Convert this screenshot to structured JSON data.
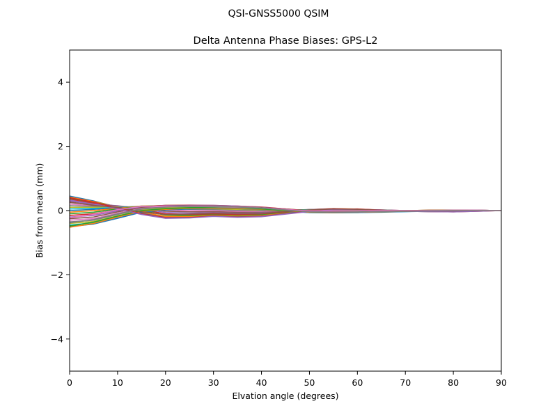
{
  "figure": {
    "suptitle": "QSI-GNSS5000    QSIM"
  },
  "chart_data": {
    "type": "line",
    "title": "Delta Antenna Phase Biases: GPS-L2",
    "xlabel": "Elvation angle (degrees)",
    "ylabel": "Bias from mean (mm)",
    "xlim": [
      0,
      90
    ],
    "ylim": [
      -5,
      5
    ],
    "xticks": [
      0,
      10,
      20,
      30,
      40,
      50,
      60,
      70,
      80,
      90
    ],
    "yticks": [
      -4,
      -2,
      0,
      2,
      4
    ],
    "ytick_labels": [
      "−4",
      "−2",
      "0",
      "2",
      "4"
    ],
    "grid": false,
    "legend": "none",
    "x": [
      0,
      5,
      10,
      15,
      20,
      25,
      30,
      35,
      40,
      45,
      50,
      55,
      60,
      65,
      70,
      75,
      80,
      85,
      90
    ],
    "palette": [
      "#1f77b4",
      "#ff7f0e",
      "#2ca02c",
      "#d62728",
      "#9467bd",
      "#8c564b",
      "#e377c2",
      "#7f7f7f",
      "#bcbd22",
      "#17becf"
    ],
    "series": [
      {
        "values": [
          0.45,
          0.3,
          0.1,
          -0.08,
          -0.2,
          -0.2,
          -0.15,
          -0.18,
          -0.15,
          -0.08,
          0.0,
          0.05,
          0.04,
          0.0,
          -0.02,
          -0.03,
          -0.03,
          -0.01,
          0.0
        ]
      },
      {
        "values": [
          0.42,
          0.28,
          0.12,
          -0.05,
          -0.18,
          -0.18,
          -0.14,
          -0.16,
          -0.14,
          -0.06,
          0.02,
          0.06,
          0.05,
          0.01,
          -0.01,
          -0.02,
          -0.02,
          0.0,
          0.0
        ]
      },
      {
        "values": [
          0.38,
          0.25,
          0.13,
          0.0,
          -0.14,
          -0.15,
          -0.12,
          -0.14,
          -0.12,
          -0.05,
          0.02,
          0.05,
          0.04,
          0.01,
          0.0,
          -0.02,
          -0.02,
          0.0,
          0.0
        ]
      },
      {
        "values": [
          0.35,
          0.22,
          0.14,
          0.03,
          -0.1,
          -0.12,
          -0.1,
          -0.12,
          -0.1,
          -0.04,
          0.03,
          0.06,
          0.04,
          0.02,
          0.0,
          -0.01,
          -0.01,
          0.0,
          0.0
        ]
      },
      {
        "values": [
          0.3,
          0.2,
          0.15,
          0.06,
          -0.06,
          -0.08,
          -0.06,
          -0.08,
          -0.07,
          -0.02,
          0.03,
          0.05,
          0.04,
          0.02,
          0.0,
          -0.01,
          0.0,
          0.0,
          0.0
        ]
      },
      {
        "values": [
          0.25,
          0.18,
          0.14,
          0.08,
          -0.02,
          -0.04,
          -0.03,
          -0.05,
          -0.04,
          -0.01,
          0.03,
          0.05,
          0.03,
          0.01,
          0.0,
          0.0,
          0.0,
          0.0,
          0.0
        ]
      },
      {
        "values": [
          0.2,
          0.15,
          0.13,
          0.1,
          0.02,
          0.0,
          0.0,
          -0.02,
          -0.02,
          0.0,
          0.03,
          0.04,
          0.03,
          0.01,
          0.0,
          0.0,
          0.0,
          0.0,
          0.0
        ]
      },
      {
        "values": [
          0.15,
          0.13,
          0.12,
          0.11,
          0.06,
          0.04,
          0.03,
          0.01,
          0.0,
          0.01,
          0.03,
          0.04,
          0.03,
          0.01,
          0.0,
          0.0,
          0.0,
          0.0,
          0.0
        ]
      },
      {
        "values": [
          0.1,
          0.1,
          0.11,
          0.12,
          0.09,
          0.07,
          0.06,
          0.04,
          0.02,
          0.01,
          0.02,
          0.03,
          0.02,
          0.01,
          0.0,
          0.0,
          0.0,
          0.0,
          0.0
        ]
      },
      {
        "values": [
          0.05,
          0.07,
          0.1,
          0.13,
          0.12,
          0.1,
          0.09,
          0.07,
          0.04,
          0.02,
          0.02,
          0.02,
          0.02,
          0.01,
          0.0,
          0.0,
          0.01,
          0.0,
          0.0
        ]
      },
      {
        "values": [
          0.0,
          0.04,
          0.09,
          0.14,
          0.14,
          0.13,
          0.12,
          0.1,
          0.07,
          0.03,
          0.01,
          0.01,
          0.01,
          0.0,
          0.0,
          0.0,
          0.01,
          0.0,
          0.0
        ]
      },
      {
        "values": [
          -0.05,
          0.0,
          0.07,
          0.14,
          0.15,
          0.15,
          0.14,
          0.12,
          0.09,
          0.04,
          0.0,
          0.0,
          0.0,
          0.0,
          0.0,
          0.01,
          0.01,
          0.0,
          0.0
        ]
      },
      {
        "values": [
          -0.1,
          -0.05,
          0.05,
          0.13,
          0.16,
          0.16,
          0.15,
          0.13,
          0.1,
          0.05,
          0.0,
          -0.01,
          -0.01,
          0.0,
          0.0,
          0.01,
          0.01,
          0.01,
          0.0
        ]
      },
      {
        "values": [
          -0.15,
          -0.1,
          0.02,
          0.12,
          0.16,
          0.17,
          0.16,
          0.14,
          0.11,
          0.05,
          -0.01,
          -0.02,
          -0.02,
          -0.01,
          0.0,
          0.01,
          0.01,
          0.01,
          0.0
        ]
      },
      {
        "values": [
          -0.2,
          -0.15,
          -0.01,
          0.11,
          0.15,
          0.16,
          0.16,
          0.14,
          0.1,
          0.04,
          -0.02,
          -0.03,
          -0.03,
          -0.02,
          -0.01,
          0.0,
          0.01,
          0.01,
          0.0
        ]
      },
      {
        "values": [
          -0.25,
          -0.2,
          -0.04,
          0.09,
          0.14,
          0.15,
          0.15,
          0.13,
          0.09,
          0.03,
          -0.03,
          -0.04,
          -0.04,
          -0.03,
          -0.01,
          0.0,
          0.01,
          0.01,
          0.0
        ]
      },
      {
        "values": [
          -0.3,
          -0.25,
          -0.08,
          0.07,
          0.12,
          0.14,
          0.14,
          0.12,
          0.08,
          0.02,
          -0.04,
          -0.05,
          -0.05,
          -0.03,
          -0.02,
          0.0,
          0.0,
          0.01,
          0.0
        ]
      },
      {
        "values": [
          -0.35,
          -0.3,
          -0.12,
          0.04,
          0.1,
          0.12,
          0.13,
          0.11,
          0.07,
          0.01,
          -0.05,
          -0.06,
          -0.05,
          -0.04,
          -0.02,
          -0.01,
          0.0,
          0.01,
          0.0
        ]
      },
      {
        "values": [
          -0.4,
          -0.34,
          -0.16,
          0.01,
          0.08,
          0.1,
          0.11,
          0.1,
          0.06,
          0.0,
          -0.05,
          -0.06,
          -0.06,
          -0.04,
          -0.02,
          -0.01,
          0.0,
          0.0,
          0.0
        ]
      },
      {
        "values": [
          -0.45,
          -0.38,
          -0.2,
          -0.02,
          0.05,
          0.08,
          0.09,
          0.08,
          0.04,
          -0.01,
          -0.06,
          -0.07,
          -0.06,
          -0.04,
          -0.03,
          -0.01,
          0.0,
          0.0,
          0.0
        ]
      },
      {
        "values": [
          -0.5,
          -0.42,
          -0.24,
          -0.05,
          0.02,
          0.05,
          0.07,
          0.06,
          0.03,
          -0.02,
          -0.06,
          -0.07,
          -0.06,
          -0.05,
          -0.03,
          -0.02,
          -0.01,
          0.0,
          0.0
        ]
      },
      {
        "values": [
          -0.52,
          -0.4,
          -0.2,
          -0.02,
          0.04,
          0.07,
          0.08,
          0.07,
          0.04,
          -0.01,
          -0.05,
          -0.06,
          -0.05,
          -0.04,
          -0.02,
          -0.01,
          0.0,
          0.0,
          0.0
        ]
      },
      {
        "values": [
          -0.48,
          -0.36,
          -0.17,
          0.0,
          0.06,
          0.09,
          0.1,
          0.09,
          0.05,
          0.0,
          -0.04,
          -0.05,
          -0.04,
          -0.03,
          -0.02,
          -0.01,
          0.0,
          0.0,
          0.0
        ]
      },
      {
        "values": [
          0.4,
          0.26,
          0.08,
          -0.1,
          -0.22,
          -0.22,
          -0.17,
          -0.2,
          -0.18,
          -0.1,
          -0.02,
          0.04,
          0.05,
          0.01,
          -0.02,
          -0.03,
          -0.04,
          -0.02,
          0.0
        ]
      },
      {
        "values": [
          0.33,
          0.2,
          0.06,
          -0.12,
          -0.24,
          -0.23,
          -0.18,
          -0.21,
          -0.19,
          -0.11,
          -0.03,
          0.03,
          0.04,
          0.0,
          -0.02,
          -0.03,
          -0.04,
          -0.02,
          0.0
        ]
      },
      {
        "values": [
          0.27,
          0.16,
          0.1,
          -0.04,
          -0.12,
          -0.11,
          -0.08,
          -0.1,
          -0.09,
          -0.03,
          0.02,
          0.05,
          0.04,
          0.01,
          0.0,
          -0.01,
          -0.01,
          0.0,
          0.0
        ]
      },
      {
        "values": [
          -0.22,
          -0.12,
          0.03,
          0.13,
          0.14,
          0.13,
          0.12,
          0.1,
          0.08,
          0.03,
          -0.01,
          -0.01,
          -0.01,
          0.0,
          0.0,
          0.0,
          0.01,
          0.01,
          0.0
        ]
      },
      {
        "values": [
          -0.38,
          -0.28,
          -0.1,
          0.06,
          0.11,
          0.13,
          0.13,
          0.11,
          0.08,
          0.02,
          -0.04,
          -0.05,
          -0.05,
          -0.03,
          -0.02,
          -0.01,
          0.0,
          0.0,
          0.0
        ]
      }
    ]
  }
}
